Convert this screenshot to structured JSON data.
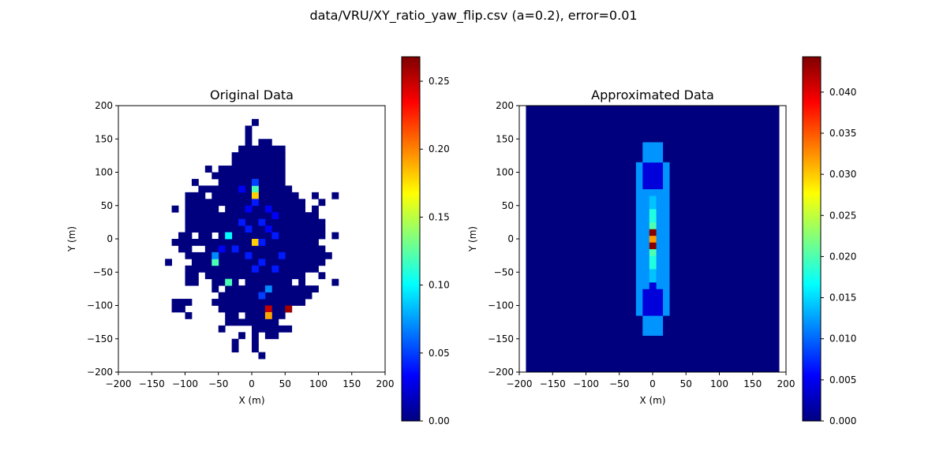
{
  "figure": {
    "suptitle": "data/VRU/XY_ratio_yaw_flip.csv (a=0.2), error=0.01"
  },
  "colormap": {
    "name": "jet",
    "stops": [
      "#00007f",
      "#0000ff",
      "#007fff",
      "#00ffff",
      "#7fff7f",
      "#ffff00",
      "#ff7f00",
      "#ff0000",
      "#7f0000"
    ]
  },
  "chart_data": [
    {
      "type": "heatmap",
      "title": "Original Data",
      "xlabel": "X (m)",
      "ylabel": "Y (m)",
      "xlim": [
        -200,
        200
      ],
      "ylim": [
        -200,
        200
      ],
      "xticks": [
        -200,
        -150,
        -100,
        -50,
        0,
        50,
        100,
        150,
        200
      ],
      "yticks": [
        -200,
        -150,
        -100,
        -50,
        0,
        50,
        100,
        150,
        200
      ],
      "bin_size": 10,
      "cell_extent": "bins of 10 m from -200 to 200 on both axes",
      "colorbar": {
        "range": [
          0,
          0.268
        ],
        "ticks": [
          0.0,
          0.05,
          0.1,
          0.15,
          0.2,
          0.25
        ],
        "tick_labels": [
          "0.00",
          "0.05",
          "0.10",
          "0.15",
          "0.20",
          "0.25"
        ]
      },
      "background_value": "empty (white)",
      "occupied_region": "irregular blob roughly x in [-130, 120], y in [-180, 170]",
      "cells": [
        {
          "x": 0,
          "y": 70,
          "v": 0.12
        },
        {
          "x": 0,
          "y": 60,
          "v": 0.18
        },
        {
          "x": 0,
          "y": 80,
          "v": 0.05
        },
        {
          "x": 0,
          "y": 50,
          "v": 0.04
        },
        {
          "x": -40,
          "y": 0,
          "v": 0.1
        },
        {
          "x": 0,
          "y": -10,
          "v": 0.18
        },
        {
          "x": -60,
          "y": -40,
          "v": 0.12
        },
        {
          "x": -60,
          "y": -30,
          "v": 0.07
        },
        {
          "x": -40,
          "y": -70,
          "v": 0.12
        },
        {
          "x": 20,
          "y": -110,
          "v": 0.25
        },
        {
          "x": 20,
          "y": -120,
          "v": 0.19
        },
        {
          "x": 50,
          "y": -110,
          "v": 0.26
        },
        {
          "x": 20,
          "y": -80,
          "v": 0.07
        },
        {
          "x": 10,
          "y": -90,
          "v": 0.05
        },
        {
          "x": 10,
          "y": -10,
          "v": 0.04
        },
        {
          "x": -10,
          "y": 10,
          "v": 0.04
        },
        {
          "x": 10,
          "y": 20,
          "v": 0.04
        },
        {
          "x": -20,
          "y": 20,
          "v": 0.04
        },
        {
          "x": 30,
          "y": 0,
          "v": 0.04
        },
        {
          "x": 20,
          "y": 40,
          "v": 0.03
        },
        {
          "x": -10,
          "y": -30,
          "v": 0.04
        },
        {
          "x": 10,
          "y": -40,
          "v": 0.04
        },
        {
          "x": -30,
          "y": -20,
          "v": 0.04
        },
        {
          "x": 40,
          "y": -30,
          "v": 0.04
        },
        {
          "x": 30,
          "y": -50,
          "v": 0.04
        },
        {
          "x": -20,
          "y": 70,
          "v": 0.03
        },
        {
          "x": 30,
          "y": 30,
          "v": 0.03
        },
        {
          "x": -10,
          "y": 40,
          "v": 0.03
        },
        {
          "x": 0,
          "y": -50,
          "v": 0.04
        },
        {
          "x": -50,
          "y": -20,
          "v": 0.03
        },
        {
          "x": 20,
          "y": 10,
          "v": 0.03
        }
      ]
    },
    {
      "type": "heatmap",
      "title": "Approximated Data",
      "xlabel": "X (m)",
      "ylabel": "Y (m)",
      "xlim": [
        -200,
        200
      ],
      "ylim": [
        -200,
        200
      ],
      "xticks": [
        -200,
        -150,
        -100,
        -50,
        0,
        50,
        100,
        150,
        200
      ],
      "yticks": [
        -200,
        -150,
        -100,
        -50,
        0,
        50,
        100,
        150,
        200
      ],
      "data_extent": {
        "x": [
          -190,
          190
        ],
        "y": [
          -200,
          200
        ]
      },
      "colorbar": {
        "range": [
          0,
          0.0443
        ],
        "ticks": [
          0.0,
          0.005,
          0.01,
          0.015,
          0.02,
          0.025,
          0.03,
          0.035,
          0.04
        ],
        "tick_labels": [
          "0.000",
          "0.005",
          "0.010",
          "0.015",
          "0.020",
          "0.025",
          "0.030",
          "0.035",
          "0.040"
        ]
      },
      "background_value": 0,
      "columns": [
        {
          "x_range": [
            -25,
            -15
          ],
          "values_by_y": [
            {
              "y": [
                -115,
                115
              ],
              "v": 0.012
            }
          ]
        },
        {
          "x_range": [
            15,
            25
          ],
          "values_by_y": [
            {
              "y": [
                -115,
                115
              ],
              "v": 0.012
            }
          ]
        },
        {
          "x_range": [
            -15,
            -5
          ],
          "values_by_y": [
            {
              "y": [
                -145,
                -115
              ],
              "v": 0.012
            },
            {
              "y": [
                -115,
                -75
              ],
              "v": 0.004
            },
            {
              "y": [
                -75,
                75
              ],
              "v": 0.012
            },
            {
              "y": [
                75,
                115
              ],
              "v": 0.004
            },
            {
              "y": [
                115,
                145
              ],
              "v": 0.012
            }
          ]
        },
        {
          "x_range": [
            5,
            15
          ],
          "values_by_y": [
            {
              "y": [
                -145,
                -115
              ],
              "v": 0.012
            },
            {
              "y": [
                -115,
                -75
              ],
              "v": 0.004
            },
            {
              "y": [
                -75,
                75
              ],
              "v": 0.012
            },
            {
              "y": [
                75,
                115
              ],
              "v": 0.004
            },
            {
              "y": [
                115,
                145
              ],
              "v": 0.012
            }
          ]
        },
        {
          "x_range": [
            -5,
            5
          ],
          "values_by_y": [
            {
              "y": [
                -145,
                -115
              ],
              "v": 0.012
            },
            {
              "y": [
                -115,
                -65
              ],
              "v": 0.004
            },
            {
              "y": [
                -65,
                -45
              ],
              "v": 0.014
            },
            {
              "y": [
                -45,
                -25
              ],
              "v": 0.018
            },
            {
              "y": [
                -25,
                -15
              ],
              "v": 0.02
            },
            {
              "y": [
                -15,
                -5
              ],
              "v": 0.044
            },
            {
              "y": [
                -5,
                5
              ],
              "v": 0.032
            },
            {
              "y": [
                5,
                15
              ],
              "v": 0.044
            },
            {
              "y": [
                15,
                25
              ],
              "v": 0.02
            },
            {
              "y": [
                25,
                45
              ],
              "v": 0.018
            },
            {
              "y": [
                45,
                65
              ],
              "v": 0.014
            },
            {
              "y": [
                65,
                75
              ],
              "v": 0.012
            },
            {
              "y": [
                75,
                115
              ],
              "v": 0.004
            },
            {
              "y": [
                115,
                145
              ],
              "v": 0.012
            }
          ]
        }
      ]
    }
  ]
}
